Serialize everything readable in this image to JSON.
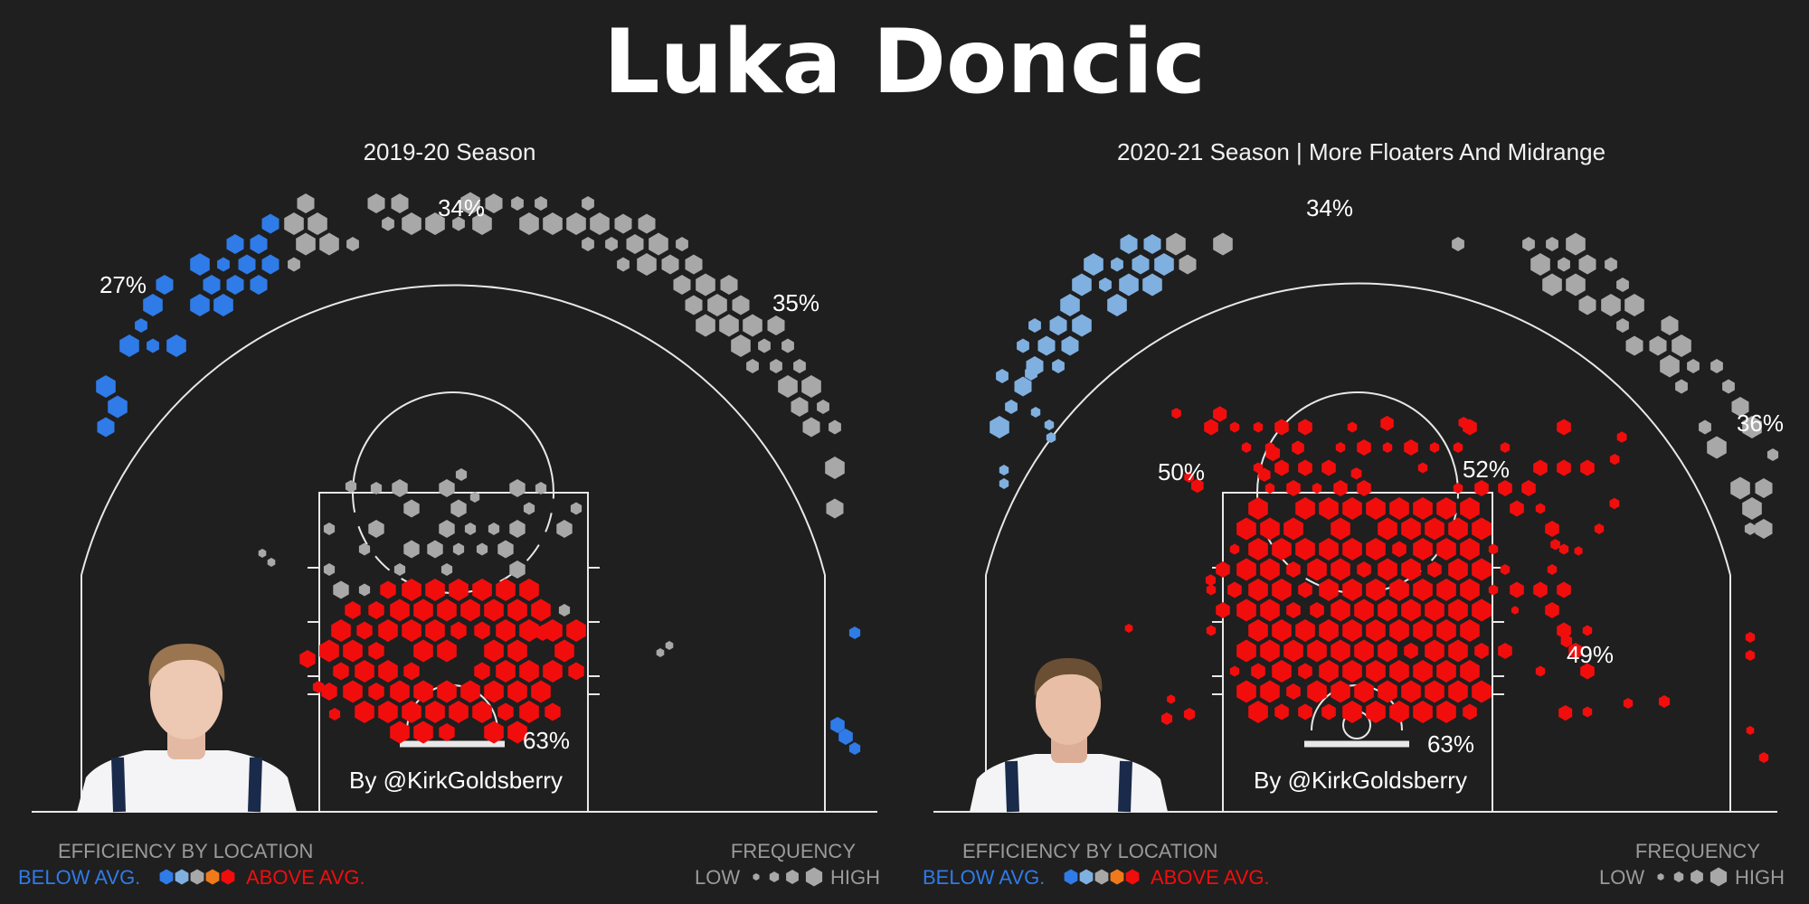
{
  "title": "Luka Doncic",
  "colors": {
    "background": "#1f1f1f",
    "court_line": "#e8e8e8",
    "below_avg": "#2f7be8",
    "below_avg_light": "#7fb0e0",
    "average": "#a8a8a8",
    "above_avg_orange": "#f07a1a",
    "above_avg": "#f20d0d",
    "legend_label": "#9a9a9a"
  },
  "credit": "By @KirkGoldsberry",
  "legend": {
    "efficiency_title": "EFFICIENCY BY LOCATION",
    "below": "BELOW AVG.",
    "above": "ABOVE AVG.",
    "frequency_title": "FREQUENCY",
    "low": "LOW",
    "high": "HIGH"
  },
  "chart_data": [
    {
      "type": "hexbin",
      "title": "2019-20 Season",
      "annotations": [
        {
          "text": "34%",
          "zone": "above the break 3"
        },
        {
          "text": "27%",
          "zone": "left wing 3"
        },
        {
          "text": "35%",
          "zone": "right wing 3"
        },
        {
          "text": "63%",
          "zone": "restricted area"
        }
      ],
      "zones": [
        {
          "zone": "left corner / left wing 3",
          "efficiency": "below",
          "frequency": "high"
        },
        {
          "zone": "above the break 3",
          "efficiency": "average",
          "frequency": "high"
        },
        {
          "zone": "right wing 3",
          "efficiency": "average",
          "frequency": "high"
        },
        {
          "zone": "right corner 3",
          "efficiency": "below",
          "frequency": "low"
        },
        {
          "zone": "free throw line / floater",
          "efficiency": "average",
          "frequency": "low"
        },
        {
          "zone": "paint",
          "efficiency": "above",
          "frequency": "high"
        }
      ]
    },
    {
      "type": "hexbin",
      "title": "2020-21 Season | More Floaters And Midrange",
      "annotations": [
        {
          "text": "34%",
          "zone": "above the break 3"
        },
        {
          "text": "36%",
          "zone": "right wing 3"
        },
        {
          "text": "50%",
          "zone": "left elbow midrange"
        },
        {
          "text": "52%",
          "zone": "right elbow midrange"
        },
        {
          "text": "49%",
          "zone": "right baseline midrange"
        },
        {
          "text": "63%",
          "zone": "restricted area"
        }
      ],
      "zones": [
        {
          "zone": "left wing 3",
          "efficiency": "below",
          "frequency": "medium"
        },
        {
          "zone": "above the break 3",
          "efficiency": "average",
          "frequency": "high"
        },
        {
          "zone": "right wing 3",
          "efficiency": "average",
          "frequency": "high"
        },
        {
          "zone": "midrange / floater",
          "efficiency": "above",
          "frequency": "high"
        },
        {
          "zone": "paint",
          "efficiency": "above",
          "frequency": "high"
        },
        {
          "zone": "right corner",
          "efficiency": "above",
          "frequency": "low"
        }
      ]
    }
  ]
}
